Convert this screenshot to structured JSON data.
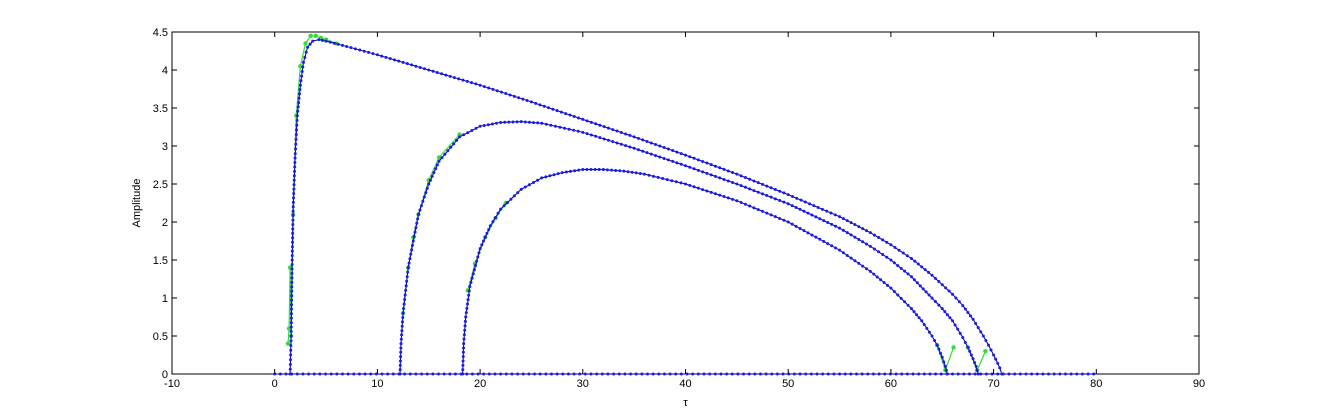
{
  "chart_data": {
    "type": "line",
    "title": "",
    "xlabel": "τ",
    "ylabel": "Amplitude",
    "xlim": [
      -10,
      90
    ],
    "ylim": [
      0,
      4.5
    ],
    "xticks": [
      -10,
      0,
      10,
      20,
      30,
      40,
      50,
      60,
      70,
      80,
      90
    ],
    "yticks": [
      0,
      0.5,
      1,
      1.5,
      2,
      2.5,
      3,
      3.5,
      4,
      4.5
    ],
    "xtick_labels": [
      "-10",
      "0",
      "10",
      "20",
      "30",
      "40",
      "50",
      "60",
      "70",
      "80",
      "90"
    ],
    "ytick_labels": [
      "0",
      "0.5",
      "1",
      "1.5",
      "2",
      "2.5",
      "3",
      "3.5",
      "4",
      "4.5"
    ],
    "grid": false,
    "legend": "none",
    "colors": {
      "simulation": "#33dd33",
      "theory_curve": "#000080",
      "theory_markers": "#1a1aee"
    },
    "baseline": {
      "x": [
        0,
        1.5,
        70.8,
        80
      ],
      "y": [
        0,
        0,
        0,
        0
      ],
      "markers_x_range": [
        0,
        80
      ]
    },
    "series": [
      {
        "x": [
          1.5,
          1.6,
          1.7,
          1.8,
          2.0,
          2.2,
          2.5,
          2.8,
          3.2,
          3.7,
          4.3,
          5,
          7,
          10,
          15,
          20,
          25,
          30,
          35,
          40,
          45,
          50,
          55,
          58,
          60,
          62,
          64,
          66,
          67,
          68,
          69,
          69.5,
          70,
          70.4,
          70.6,
          70.8
        ],
        "y": [
          0,
          0.5,
          1.5,
          2.2,
          2.9,
          3.4,
          3.8,
          4.1,
          4.3,
          4.38,
          4.4,
          4.38,
          4.31,
          4.2,
          4.0,
          3.8,
          3.58,
          3.35,
          3.12,
          2.88,
          2.63,
          2.36,
          2.07,
          1.86,
          1.7,
          1.52,
          1.3,
          1.05,
          0.9,
          0.72,
          0.5,
          0.38,
          0.25,
          0.14,
          0.08,
          0
        ]
      },
      {
        "x": [
          12.2,
          12.3,
          12.5,
          13,
          14,
          15,
          16,
          18,
          20,
          22,
          24,
          26,
          30,
          35,
          40,
          45,
          50,
          55,
          58,
          60,
          62,
          64,
          65,
          66,
          67,
          67.5,
          68,
          68.3,
          68.5
        ],
        "y": [
          0,
          0.4,
          0.8,
          1.4,
          2.1,
          2.5,
          2.8,
          3.12,
          3.26,
          3.31,
          3.32,
          3.3,
          3.18,
          2.97,
          2.74,
          2.5,
          2.24,
          1.92,
          1.68,
          1.5,
          1.28,
          1.0,
          0.86,
          0.7,
          0.48,
          0.35,
          0.2,
          0.1,
          0
        ]
      },
      {
        "x": [
          18.3,
          18.4,
          18.6,
          19,
          20,
          21,
          22,
          24,
          26,
          28,
          30,
          32,
          34,
          36,
          40,
          45,
          50,
          55,
          58,
          60,
          62,
          63,
          64,
          64.5,
          65,
          65.3,
          65.5
        ],
        "y": [
          0,
          0.4,
          0.75,
          1.15,
          1.65,
          1.95,
          2.17,
          2.43,
          2.58,
          2.65,
          2.69,
          2.69,
          2.67,
          2.63,
          2.5,
          2.28,
          2.0,
          1.63,
          1.35,
          1.13,
          0.86,
          0.7,
          0.5,
          0.38,
          0.22,
          0.1,
          0
        ]
      },
      {
        "x": [
          1.3,
          1.4,
          1.5,
          1.6,
          1.8,
          2.1,
          2.5,
          3.0,
          3.5,
          4.0,
          4.5,
          5.0,
          6.0
        ],
        "y": [
          0.4,
          0.6,
          1.4,
          0.5,
          2.1,
          3.4,
          4.05,
          4.35,
          4.45,
          4.45,
          4.42,
          4.4,
          4.35
        ]
      },
      {
        "x": [
          12.5,
          13,
          13.5,
          14,
          15,
          16,
          18
        ],
        "y": [
          0.8,
          1.4,
          1.8,
          2.1,
          2.55,
          2.85,
          3.15
        ]
      },
      {
        "x": [
          18.8,
          19.5,
          20.5,
          21.5,
          22.5
        ],
        "y": [
          1.1,
          1.45,
          1.8,
          2.05,
          2.25
        ]
      },
      {
        "x": [
          64.5,
          65.3,
          66.1
        ],
        "y": [
          0.38,
          0.05,
          0.35
        ]
      },
      {
        "x": [
          67.5,
          68.4,
          69.2
        ],
        "y": [
          0.35,
          0.05,
          0.3
        ]
      }
    ]
  }
}
